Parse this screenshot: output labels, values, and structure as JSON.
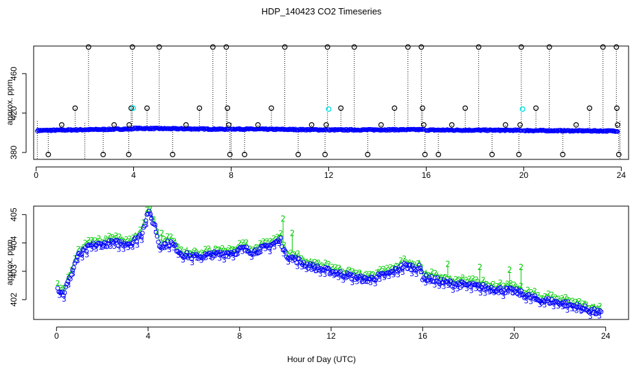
{
  "title": "HDP_140423  CO2 Timeseries",
  "xlabel": "Hour of Day (UTC)",
  "colors": {
    "black": "#000000",
    "blue": "#0000ff",
    "green": "#00cc00",
    "cyan": "#00e0e0"
  },
  "chart_data": [
    {
      "type": "scatter",
      "panel": "top",
      "ylabel": "approx. ppm",
      "xlim": [
        -0.1,
        24.3
      ],
      "ylim": [
        373,
        488
      ],
      "x_ticks": [
        0,
        4,
        8,
        12,
        16,
        20,
        24
      ],
      "x_tick_labels": [
        "0",
        "4",
        "8",
        "12",
        "16",
        "20",
        "24"
      ],
      "y_ticks": [
        380,
        420,
        460
      ],
      "y_tick_labels": [
        "380",
        "420",
        "460"
      ],
      "series": [
        {
          "name": "baseline (blue)",
          "segments": [
            {
              "x0": 0.05,
              "x1": 3.95,
              "y0": 402.3,
              "y1": 403.9
            },
            {
              "x0": 4.0,
              "x1": 7.9,
              "y0": 404.5,
              "y1": 403.6
            },
            {
              "x0": 8.0,
              "x1": 11.9,
              "y0": 403.9,
              "y1": 403.0
            },
            {
              "x0": 12.0,
              "x1": 15.9,
              "y0": 402.9,
              "y1": 403.2
            },
            {
              "x0": 16.0,
              "x1": 19.9,
              "y0": 402.8,
              "y1": 402.5
            },
            {
              "x0": 20.0,
              "x1": 23.85,
              "y0": 402.3,
              "y1": 401.8
            }
          ]
        },
        {
          "name": "spikes (black)",
          "points": [
            [
              0.5,
              378
            ],
            [
              1.05,
              408
            ],
            [
              1.6,
              425
            ],
            [
              2.15,
              487
            ],
            [
              2.75,
              378
            ],
            [
              3.2,
              408
            ],
            [
              3.8,
              378
            ],
            [
              3.82,
              408
            ],
            [
              3.9,
              425
            ],
            [
              3.95,
              487
            ],
            [
              4.55,
              425
            ],
            [
              5.05,
              487
            ],
            [
              5.6,
              378
            ],
            [
              6.15,
              408
            ],
            [
              6.7,
              425
            ],
            [
              7.25,
              487
            ],
            [
              7.8,
              487
            ],
            [
              7.85,
              425
            ],
            [
              7.9,
              408
            ],
            [
              7.95,
              378
            ],
            [
              8.55,
              378
            ],
            [
              9.1,
              408
            ],
            [
              9.65,
              425
            ],
            [
              10.2,
              487
            ],
            [
              10.75,
              378
            ],
            [
              11.3,
              408
            ],
            [
              11.85,
              378
            ],
            [
              11.9,
              408
            ],
            [
              11.95,
              487
            ],
            [
              12.5,
              425
            ],
            [
              13.05,
              487
            ],
            [
              13.6,
              378
            ],
            [
              14.15,
              408
            ],
            [
              14.7,
              425
            ],
            [
              15.25,
              487
            ],
            [
              15.8,
              487
            ],
            [
              15.85,
              425
            ],
            [
              15.9,
              408
            ],
            [
              15.95,
              378
            ],
            [
              16.5,
              378
            ],
            [
              17.05,
              408
            ],
            [
              17.6,
              425
            ],
            [
              18.15,
              487
            ],
            [
              18.7,
              378
            ],
            [
              19.25,
              408
            ],
            [
              19.8,
              378
            ],
            [
              19.85,
              408
            ],
            [
              19.9,
              487
            ],
            [
              20.5,
              425
            ],
            [
              21.05,
              487
            ],
            [
              21.6,
              378
            ],
            [
              22.15,
              408
            ],
            [
              22.7,
              425
            ],
            [
              23.25,
              487
            ],
            [
              23.8,
              487
            ],
            [
              23.82,
              425
            ],
            [
              23.85,
              408
            ],
            [
              23.9,
              378
            ]
          ]
        },
        {
          "name": "highlight (cyan)",
          "points": [
            [
              3.98,
              425
            ],
            [
              12.0,
              424
            ],
            [
              19.95,
              424
            ]
          ]
        }
      ]
    },
    {
      "type": "scatter",
      "panel": "bottom",
      "ylabel": "approx. ppm",
      "xlim": [
        -1.0,
        25.0
      ],
      "ylim": [
        401.3,
        405.3
      ],
      "x_ticks": [
        0,
        4,
        8,
        12,
        16,
        20,
        24
      ],
      "x_tick_labels": [
        "0",
        "4",
        "8",
        "12",
        "16",
        "20",
        "24"
      ],
      "y_ticks": [
        402,
        403,
        404,
        405
      ],
      "y_tick_labels": [
        "402",
        "403",
        "404",
        "405"
      ],
      "point_labels": {
        "blue": "3",
        "green": "2"
      },
      "series": [
        {
          "name": "blue (3)",
          "anchors": [
            [
              0.05,
              402.4
            ],
            [
              0.3,
              402.2
            ],
            [
              0.6,
              402.8
            ],
            [
              0.9,
              403.5
            ],
            [
              1.5,
              403.9
            ],
            [
              2.5,
              404.0
            ],
            [
              3.3,
              404.0
            ],
            [
              3.7,
              404.3
            ],
            [
              4.0,
              405.1
            ],
            [
              4.3,
              404.6
            ],
            [
              4.5,
              403.9
            ],
            [
              5.0,
              404.0
            ],
            [
              5.5,
              403.6
            ],
            [
              6.0,
              403.5
            ],
            [
              7.0,
              403.6
            ],
            [
              7.9,
              403.7
            ],
            [
              8.1,
              403.8
            ],
            [
              8.6,
              403.7
            ],
            [
              9.0,
              403.8
            ],
            [
              9.8,
              404.1
            ],
            [
              10.0,
              403.6
            ],
            [
              10.5,
              403.4
            ],
            [
              11.0,
              403.2
            ],
            [
              11.9,
              403.0
            ],
            [
              12.0,
              403.0
            ],
            [
              13.0,
              402.8
            ],
            [
              13.5,
              402.7
            ],
            [
              14.0,
              402.8
            ],
            [
              14.5,
              402.9
            ],
            [
              15.2,
              403.2
            ],
            [
              15.9,
              403.1
            ],
            [
              16.0,
              402.8
            ],
            [
              17.0,
              402.6
            ],
            [
              18.0,
              402.5
            ],
            [
              19.0,
              402.4
            ],
            [
              19.9,
              402.3
            ],
            [
              20.0,
              402.3
            ],
            [
              21.0,
              402.0
            ],
            [
              22.0,
              401.9
            ],
            [
              23.0,
              401.7
            ],
            [
              23.8,
              401.5
            ]
          ]
        },
        {
          "name": "green (2)",
          "offset": 0.18,
          "spikes": [
            [
              4.6,
              404.3
            ],
            [
              9.9,
              404.8
            ],
            [
              10.3,
              404.3
            ],
            [
              17.1,
              403.2
            ],
            [
              18.5,
              403.1
            ],
            [
              19.8,
              403.0
            ],
            [
              20.3,
              403.1
            ]
          ]
        }
      ]
    }
  ]
}
